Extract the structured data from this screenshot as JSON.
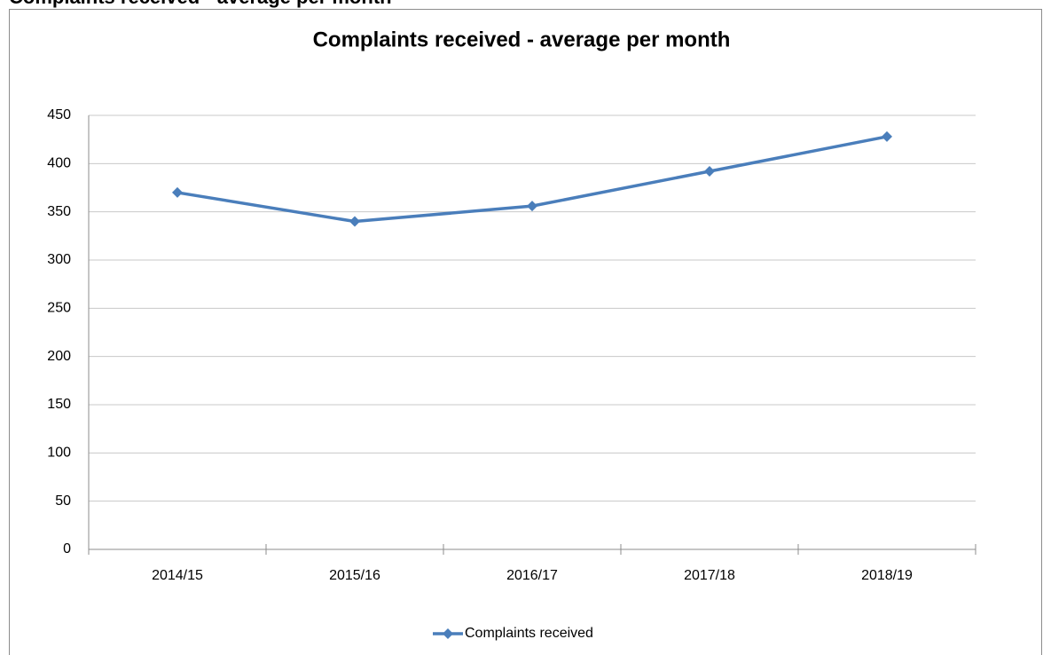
{
  "page_heading": "Complaints received - average per month",
  "chart_data": {
    "type": "line",
    "title": "Complaints received - average per month",
    "categories": [
      "2014/15",
      "2015/16",
      "2016/17",
      "2017/18",
      "2018/19"
    ],
    "series": [
      {
        "name": "Complaints received",
        "color": "#4a7ebb",
        "values": [
          370,
          340,
          356,
          392,
          428
        ]
      }
    ],
    "ylim": [
      0,
      450
    ],
    "yticks": [
      0,
      50,
      100,
      150,
      200,
      250,
      300,
      350,
      400,
      450
    ],
    "grid": true,
    "legend": "bottom"
  }
}
